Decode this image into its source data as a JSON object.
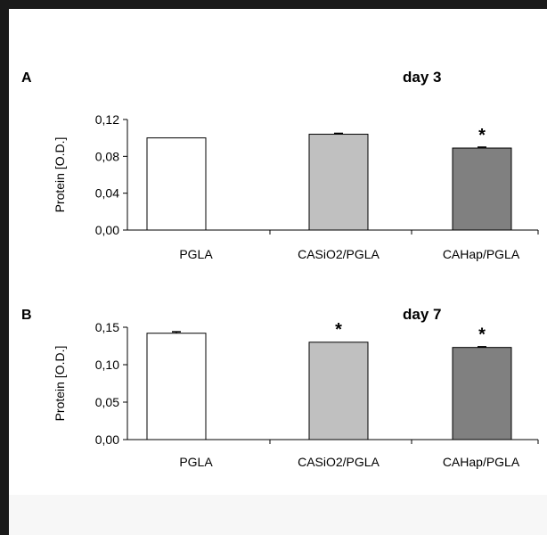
{
  "colors": {
    "PGLA": "#ffffff",
    "CASiO2/PGLA": "#c0c0c0",
    "CAHap/PGLA": "#808080"
  },
  "chart_data": [
    {
      "type": "bar",
      "panel": "A",
      "title": "day 3",
      "xlabel": "",
      "ylabel": "Protein [O.D.]",
      "categories": [
        "PGLA",
        "CASiO2/PGLA",
        "CAHap/PGLA"
      ],
      "values": [
        0.1,
        0.104,
        0.089
      ],
      "errors": [
        0.0,
        0.001,
        0.001
      ],
      "significance": [
        "",
        "",
        "*"
      ],
      "ylim": [
        0,
        0.12
      ],
      "yticks": [
        "0,00",
        "0,04",
        "0,08",
        "0,12"
      ],
      "ytick_values": [
        0,
        0.04,
        0.08,
        0.12
      ],
      "grid": false,
      "legend": "none"
    },
    {
      "type": "bar",
      "panel": "B",
      "title": "day 7",
      "xlabel": "",
      "ylabel": "Protein [O.D.]",
      "categories": [
        "PGLA",
        "CASiO2/PGLA",
        "CAHap/PGLA"
      ],
      "values": [
        0.142,
        0.13,
        0.123
      ],
      "errors": [
        0.002,
        0.0,
        0.001
      ],
      "significance": [
        "",
        "*",
        "*"
      ],
      "ylim": [
        0,
        0.15
      ],
      "yticks": [
        "0,00",
        "0,05",
        "0,10",
        "0,15"
      ],
      "ytick_values": [
        0,
        0.05,
        0.1,
        0.15
      ],
      "grid": false,
      "legend": "none"
    }
  ]
}
